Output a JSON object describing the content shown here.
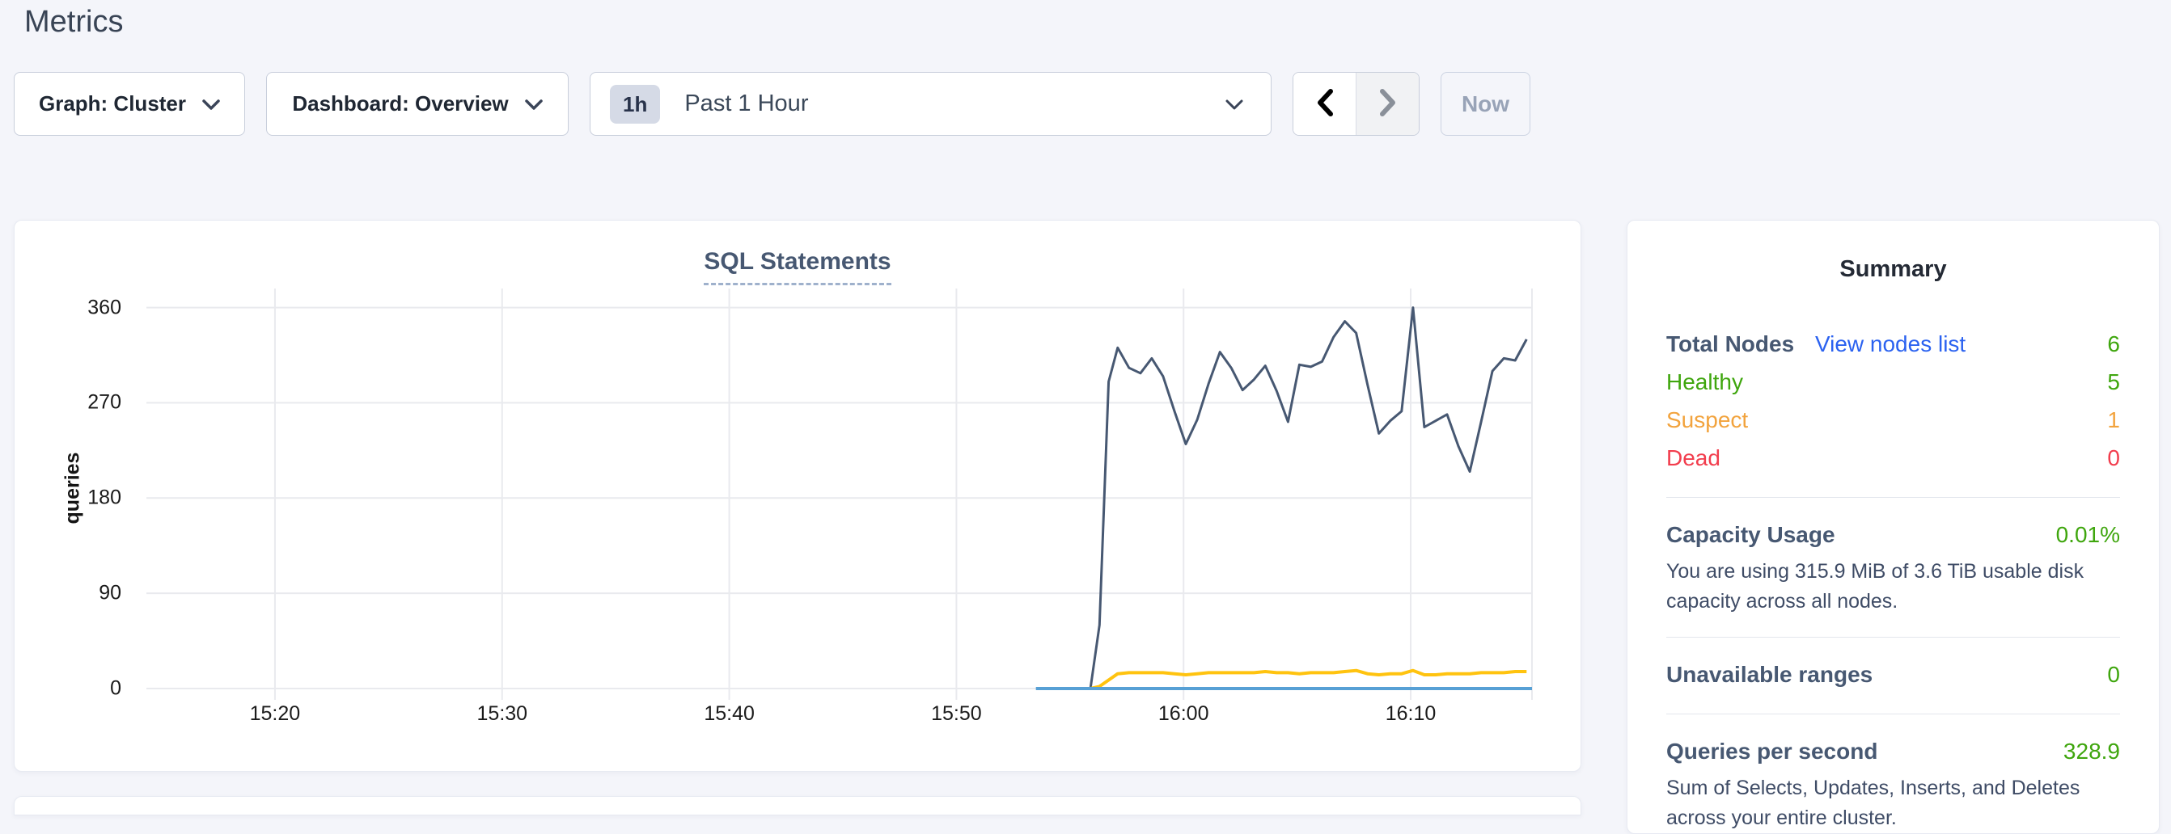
{
  "header": {
    "title": "Metrics"
  },
  "controls": {
    "graph_dropdown": {
      "label": "Graph: Cluster",
      "icon": "chevron-down-icon"
    },
    "dashboard_dropdown": {
      "label": "Dashboard: Overview",
      "icon": "chevron-down-icon"
    },
    "time_range": {
      "badge": "1h",
      "label": "Past 1 Hour",
      "icon": "chevron-down-icon"
    },
    "back_icon": "chevron-left-icon",
    "forward_icon": "chevron-right-icon",
    "now_label": "Now"
  },
  "chart_data": {
    "type": "line",
    "title": "SQL Statements",
    "xlabel": "",
    "ylabel": "queries",
    "grid": true,
    "legend": "none",
    "ylim": [
      0,
      378
    ],
    "yticks": [
      0,
      90,
      180,
      270,
      360
    ],
    "xlim_minutes_after_1500": [
      14.34,
      75.34
    ],
    "xticks": [
      {
        "t": 20,
        "label": "15:20"
      },
      {
        "t": 30,
        "label": "15:30"
      },
      {
        "t": 40,
        "label": "15:40"
      },
      {
        "t": 50,
        "label": "15:50"
      },
      {
        "t": 60,
        "label": "16:00"
      },
      {
        "t": 70,
        "label": "16:10"
      }
    ],
    "series": [
      {
        "name": "dark-slate-line",
        "color": "#475872",
        "width": 3,
        "x": [
          55.9,
          56.3,
          56.7,
          57.1,
          57.6,
          58.1,
          58.6,
          59.1,
          59.6,
          60.1,
          60.6,
          61.1,
          61.6,
          62.1,
          62.6,
          63.1,
          63.6,
          64.1,
          64.6,
          65.1,
          65.6,
          66.1,
          66.6,
          67.1,
          67.6,
          68.1,
          68.6,
          69.1,
          69.6,
          70.1,
          70.6,
          71.1,
          71.6,
          72.1,
          72.6,
          73.1,
          73.6,
          74.1,
          74.6,
          75.1
        ],
        "values": [
          0,
          60,
          290,
          322,
          303,
          298,
          312,
          295,
          262,
          231,
          254,
          288,
          318,
          303,
          282,
          292,
          305,
          281,
          252,
          306,
          304,
          309,
          332,
          347,
          336,
          287,
          241,
          253,
          262,
          360,
          247,
          253,
          259,
          229,
          205,
          252,
          300,
          312,
          310,
          330
        ]
      },
      {
        "name": "yellow-line",
        "color": "#ffc30f",
        "width": 4,
        "x": [
          55.9,
          56.3,
          56.7,
          57.1,
          57.6,
          58.1,
          58.6,
          59.1,
          59.6,
          60.1,
          60.6,
          61.1,
          61.6,
          62.1,
          62.6,
          63.1,
          63.6,
          64.1,
          64.6,
          65.1,
          65.6,
          66.1,
          66.6,
          67.1,
          67.6,
          68.1,
          68.6,
          69.1,
          69.6,
          70.1,
          70.6,
          71.1,
          71.6,
          72.1,
          72.6,
          73.1,
          73.6,
          74.1,
          74.6,
          75.1
        ],
        "values": [
          0,
          2,
          8,
          14,
          15,
          15,
          15,
          15,
          14,
          13,
          14,
          15,
          15,
          15,
          15,
          15,
          16,
          15,
          15,
          14,
          15,
          15,
          15,
          16,
          17,
          14,
          13,
          14,
          14,
          17,
          13,
          13,
          14,
          14,
          14,
          15,
          15,
          15,
          16,
          16
        ]
      },
      {
        "name": "blue-line",
        "color": "#57a0d5",
        "width": 4,
        "x": [
          53.5,
          75.34
        ],
        "values": [
          0,
          0
        ]
      }
    ]
  },
  "summary": {
    "title": "Summary",
    "nodes": {
      "label": "Total Nodes",
      "link": "View nodes list",
      "value": "6",
      "statuses": [
        {
          "label": "Healthy",
          "value": "5"
        },
        {
          "label": "Suspect",
          "value": "1"
        },
        {
          "label": "Dead",
          "value": "0"
        }
      ]
    },
    "capacity": {
      "label": "Capacity Usage",
      "value": "0.01%",
      "description": "You are using 315.9 MiB of 3.6 TiB usable disk capacity across all nodes."
    },
    "unavailable_ranges": {
      "label": "Unavailable ranges",
      "value": "0"
    },
    "qps": {
      "label": "Queries per second",
      "value": "328.9",
      "description": "Sum of Selects, Updates, Inserts, and Deletes across your entire cluster."
    }
  },
  "colors": {
    "status_green": "#3fa60e",
    "status_orange": "#f2a33d",
    "status_red": "#f23d4d",
    "link_blue": "#2b62f0",
    "slate": "#475872",
    "line_yellow": "#ffc30f",
    "line_blue": "#57a0d5"
  }
}
